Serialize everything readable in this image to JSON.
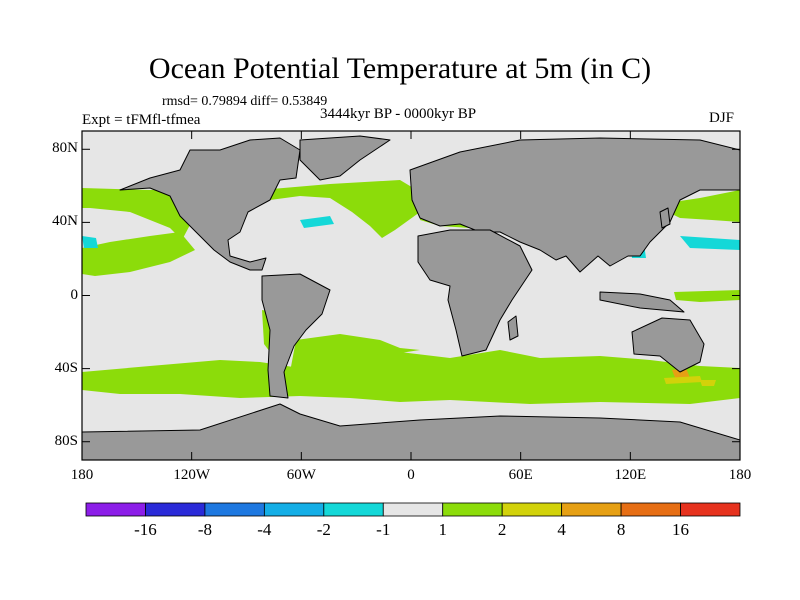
{
  "title": "Ocean Potential Temperature at 5m (in C)",
  "stats": "rmsd= 0.79894 diff= 0.53849",
  "experiment": "Expt = tFMfl-tfmea",
  "period": "3444kyr BP - 0000kyr BP",
  "season": "DJF",
  "lat_ticks": [
    {
      "label": "80N",
      "lat": 80
    },
    {
      "label": "40N",
      "lat": 40
    },
    {
      "label": "0",
      "lat": 0
    },
    {
      "label": "40S",
      "lat": -40
    },
    {
      "label": "80S",
      "lat": -80
    }
  ],
  "lon_ticks": [
    {
      "label": "180",
      "lon": -180
    },
    {
      "label": "120W",
      "lon": -120
    },
    {
      "label": "60W",
      "lon": -60
    },
    {
      "label": "0",
      "lon": 0
    },
    {
      "label": "60E",
      "lon": 60
    },
    {
      "label": "120E",
      "lon": 120
    },
    {
      "label": "180",
      "lon": 180
    }
  ],
  "colorbar": {
    "colors": [
      "#8c1ee8",
      "#2a2ad8",
      "#1e78e0",
      "#14aee6",
      "#14d8d8",
      "#e6e6e6",
      "#8cdc0a",
      "#d2d20a",
      "#e6a014",
      "#e66e14",
      "#e6321e"
    ],
    "labels": [
      "-16",
      "-8",
      "-4",
      "-2",
      "-1",
      "1",
      "2",
      "4",
      "8",
      "16"
    ]
  },
  "colors": {
    "ocean_neutral": "#e6e6e6",
    "land": "#999999",
    "warm_1_2": "#8cdc0a",
    "warm_2_4": "#d2d20a",
    "warm_4_8": "#e6a014",
    "cool_m2_m1": "#14d8d8"
  }
}
